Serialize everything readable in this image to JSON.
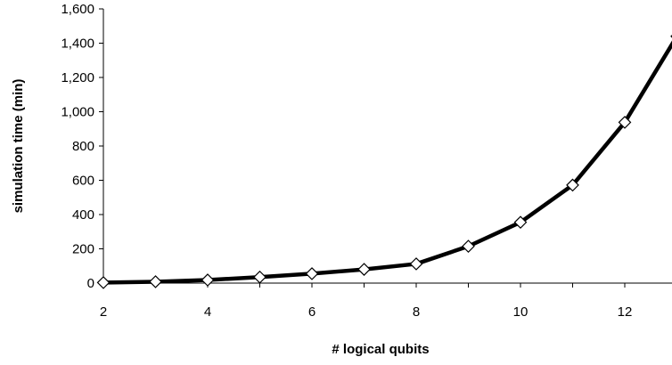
{
  "chart_data": {
    "type": "line",
    "title": "",
    "xlabel": "# logical qubits",
    "ylabel": "simulation time (min)",
    "xlim": [
      2,
      13
    ],
    "ylim": [
      0,
      1600
    ],
    "x_ticks": [
      2,
      4,
      6,
      8,
      10,
      12
    ],
    "x_tick_labels": [
      "2",
      "4",
      "6",
      "8",
      "10",
      "12"
    ],
    "y_ticks": [
      0,
      200,
      400,
      600,
      800,
      1000,
      1200,
      1400,
      1600
    ],
    "y_tick_labels": [
      "0",
      "200",
      "400",
      "600",
      "800",
      "1,000",
      "1,200",
      "1,400",
      "1,600"
    ],
    "grid": false,
    "legend": "none",
    "series": [
      {
        "x": [
          2,
          3,
          4,
          5,
          6,
          7,
          8,
          9,
          10,
          11,
          12,
          13
        ],
        "values": [
          3,
          8,
          18,
          35,
          55,
          80,
          112,
          215,
          355,
          572,
          938,
          1440
        ],
        "color": "#000000",
        "marker": "diamond"
      }
    ]
  }
}
